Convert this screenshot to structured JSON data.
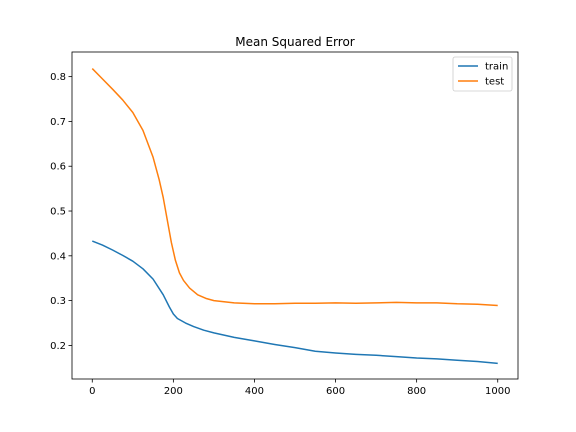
{
  "chart_data": {
    "type": "line",
    "title": "Mean Squared Error",
    "xlabel": "",
    "ylabel": "",
    "xlim": [
      -50,
      1050
    ],
    "ylim": [
      0.125,
      0.855
    ],
    "xticks": [
      0,
      200,
      400,
      600,
      800,
      1000
    ],
    "yticks": [
      0.2,
      0.3,
      0.4,
      0.5,
      0.6,
      0.7,
      0.8
    ],
    "grid": false,
    "legend_position": "top-right",
    "series": [
      {
        "name": "train",
        "color": "#1f77b4",
        "x": [
          0,
          25,
          50,
          75,
          100,
          125,
          150,
          175,
          190,
          200,
          210,
          220,
          230,
          250,
          275,
          300,
          350,
          400,
          450,
          500,
          550,
          600,
          650,
          700,
          750,
          800,
          850,
          900,
          950,
          1000
        ],
        "y": [
          0.433,
          0.424,
          0.413,
          0.401,
          0.388,
          0.371,
          0.348,
          0.313,
          0.286,
          0.27,
          0.26,
          0.255,
          0.25,
          0.242,
          0.234,
          0.228,
          0.218,
          0.21,
          0.202,
          0.195,
          0.187,
          0.183,
          0.18,
          0.178,
          0.175,
          0.172,
          0.17,
          0.167,
          0.164,
          0.16
        ]
      },
      {
        "name": "test",
        "color": "#ff7f0e",
        "x": [
          0,
          25,
          50,
          75,
          100,
          125,
          150,
          165,
          175,
          185,
          195,
          205,
          215,
          225,
          240,
          260,
          280,
          300,
          350,
          400,
          450,
          500,
          550,
          600,
          650,
          700,
          750,
          800,
          850,
          900,
          950,
          1000
        ],
        "y": [
          0.818,
          0.795,
          0.772,
          0.748,
          0.72,
          0.68,
          0.62,
          0.57,
          0.53,
          0.48,
          0.43,
          0.39,
          0.362,
          0.345,
          0.328,
          0.313,
          0.305,
          0.3,
          0.295,
          0.293,
          0.293,
          0.294,
          0.294,
          0.295,
          0.294,
          0.295,
          0.296,
          0.295,
          0.295,
          0.293,
          0.292,
          0.289
        ]
      }
    ]
  }
}
